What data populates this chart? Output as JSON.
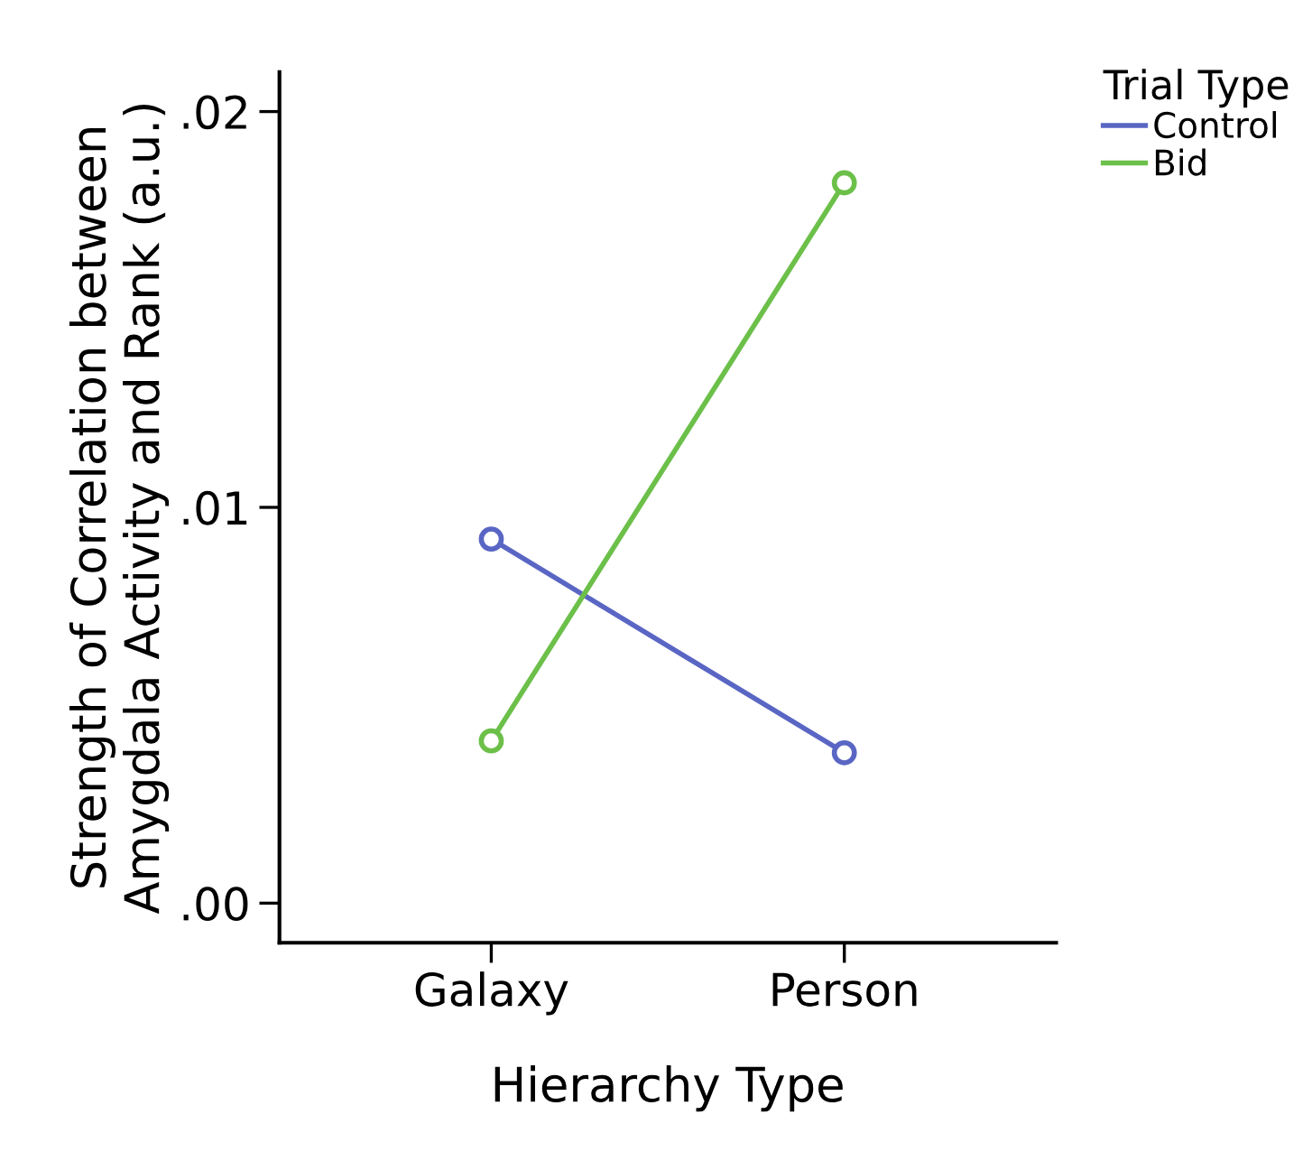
{
  "chart_data": {
    "type": "line",
    "xlabel": "Hierarchy Type",
    "ylabel": "Strength of Correlation between\nAmygdala Activity and Rank (a.u.)",
    "legend_title": "Trial Type",
    "categories": [
      "Galaxy",
      "Person"
    ],
    "series": [
      {
        "name": "Control",
        "color": "#5a66c4",
        "values": [
          0.0092,
          0.0038
        ]
      },
      {
        "name": "Bid",
        "color": "#6cc04a",
        "values": [
          0.0041,
          0.0182
        ]
      }
    ],
    "ylim": [
      -0.001,
      0.021
    ],
    "yticks": [
      {
        "value": 0.0,
        "label": ".00"
      },
      {
        "value": 0.01,
        "label": ".01"
      },
      {
        "value": 0.02,
        "label": ".02"
      }
    ],
    "marker": "circle",
    "line_style": "solid",
    "grid": false,
    "legend": "top right"
  }
}
